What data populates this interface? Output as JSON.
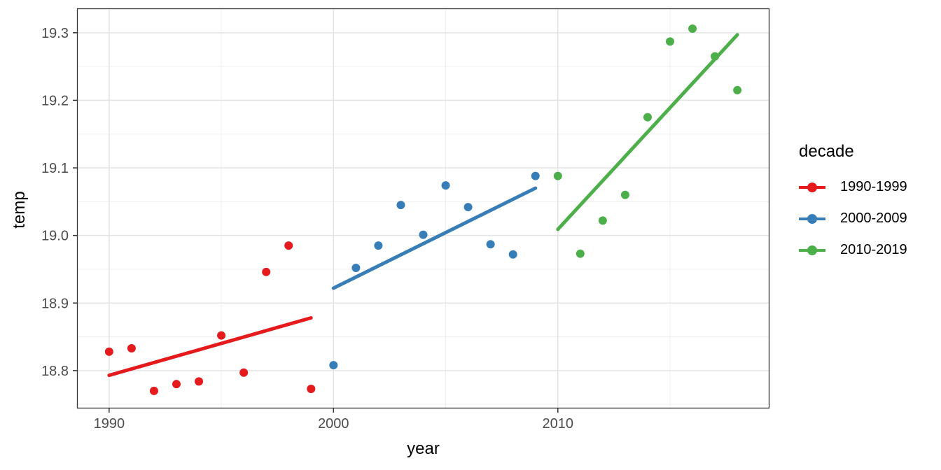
{
  "chart_data": {
    "type": "scatter",
    "title": "",
    "xlabel": "year",
    "ylabel": "temp",
    "xlim": [
      1988.6,
      2019.4
    ],
    "ylim": [
      18.745,
      19.335
    ],
    "x_major_ticks": [
      1990,
      2000,
      2010
    ],
    "x_tick_labels": [
      "1990",
      "2000",
      "2010"
    ],
    "x_minor_gridlines": [
      1995,
      2005,
      2015
    ],
    "y_major_ticks": [
      18.8,
      18.9,
      19.0,
      19.1,
      19.2,
      19.3
    ],
    "y_tick_labels": [
      "18.8",
      "18.9",
      "19.0",
      "19.1",
      "19.2",
      "19.3"
    ],
    "y_minor_gridlines": [
      18.75,
      18.85,
      18.95,
      19.05,
      19.15,
      19.25
    ],
    "grid": true,
    "legend_position": "right",
    "legend_title": "decade",
    "series": [
      {
        "name": "1990-1999",
        "color": "#e41a1c",
        "x": [
          1990,
          1991,
          1992,
          1993,
          1994,
          1995,
          1996,
          1997,
          1998,
          1999
        ],
        "y": [
          18.828,
          18.833,
          18.77,
          18.78,
          18.784,
          18.852,
          18.797,
          18.946,
          18.985,
          18.773
        ],
        "trend": {
          "x1": 1990,
          "y1": 18.793,
          "x2": 1999,
          "y2": 18.878
        }
      },
      {
        "name": "2000-2009",
        "color": "#377eb8",
        "x": [
          2000,
          2001,
          2002,
          2003,
          2004,
          2005,
          2006,
          2007,
          2008,
          2009
        ],
        "y": [
          18.808,
          18.952,
          18.985,
          19.045,
          19.001,
          19.074,
          19.042,
          18.987,
          18.972,
          19.088
        ],
        "trend": {
          "x1": 2000,
          "y1": 18.922,
          "x2": 2009,
          "y2": 19.07
        }
      },
      {
        "name": "2010-2019",
        "color": "#4daf4a",
        "x": [
          2010,
          2011,
          2012,
          2013,
          2014,
          2015,
          2016,
          2017,
          2018
        ],
        "y": [
          19.088,
          18.973,
          19.022,
          19.06,
          19.175,
          19.287,
          19.306,
          19.265,
          19.215
        ],
        "trend": {
          "x1": 2010,
          "y1": 19.009,
          "x2": 2018,
          "y2": 19.297
        }
      }
    ],
    "style": {
      "panel_border_color": "#333333",
      "major_grid_color": "#e4e4e4",
      "minor_grid_color": "#efefef",
      "tick_mark_color": "#333333",
      "tick_label_color": "#4d4d4d",
      "background": "#ffffff",
      "point_radius": 6,
      "trend_line_width": 5
    }
  }
}
